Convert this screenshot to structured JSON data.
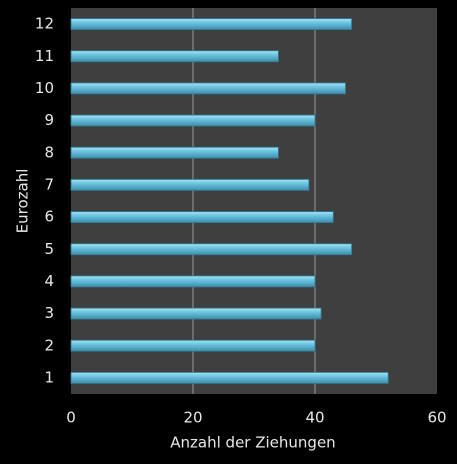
{
  "chart_data": {
    "type": "bar",
    "orientation": "horizontal",
    "xlabel": "Anzahl der Ziehungen",
    "ylabel": "Eurozahl",
    "categories": [
      "1",
      "2",
      "3",
      "4",
      "5",
      "6",
      "7",
      "8",
      "9",
      "10",
      "11",
      "12"
    ],
    "values": [
      52,
      40,
      41,
      40,
      46,
      43,
      39,
      34,
      40,
      45,
      34,
      46
    ],
    "color": "#6ec6e2",
    "xlim": [
      0,
      60
    ],
    "xticks": [
      0,
      20,
      40,
      60
    ],
    "grid": true
  }
}
